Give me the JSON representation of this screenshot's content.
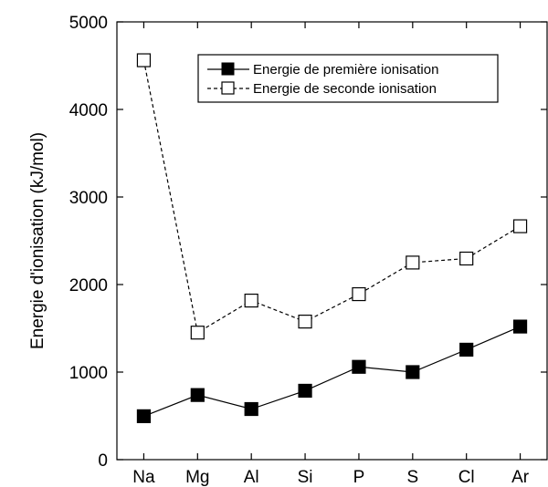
{
  "chart_data": {
    "type": "line",
    "title": "",
    "xlabel": "",
    "ylabel": "Energie d'ionisation (kJ/mol)",
    "categories": [
      "Na",
      "Mg",
      "Al",
      "Si",
      "P",
      "S",
      "Cl",
      "Ar"
    ],
    "ylim": [
      0,
      5000
    ],
    "yticks": [
      0,
      1000,
      2000,
      3000,
      4000,
      5000
    ],
    "grid": false,
    "legend_position": "top-right",
    "series": [
      {
        "name": "Energie de première ionisation",
        "marker": "filled-square",
        "line": "solid",
        "color": "#000000",
        "values": [
          496,
          738,
          578,
          787,
          1060,
          1000,
          1256,
          1520
        ]
      },
      {
        "name": "Energie de seconde ionisation",
        "marker": "open-square",
        "line": "dashed",
        "color": "#000000",
        "values": [
          4562,
          1451,
          1817,
          1577,
          1890,
          2251,
          2297,
          2666
        ]
      }
    ]
  }
}
